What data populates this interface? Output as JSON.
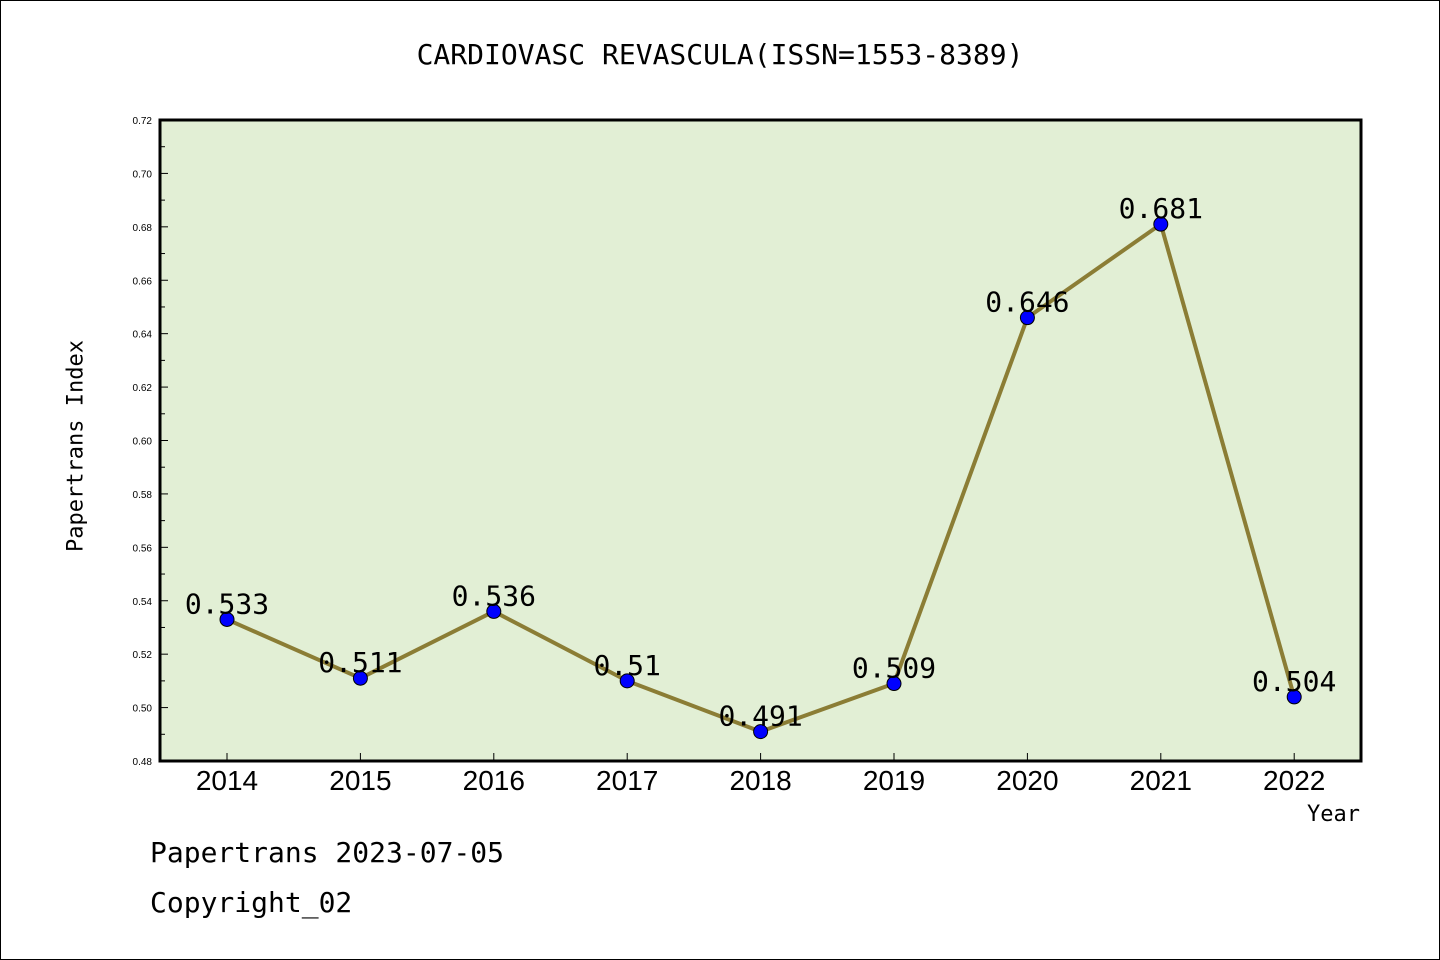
{
  "title": "CARDIOVASC REVASCULA(ISSN=1553-8389)",
  "footer": {
    "line1": "Papertrans 2023-07-05",
    "line2": "Copyright_02"
  },
  "colors": {
    "plot_bg": "#e2efd5",
    "line": "#8b7d35",
    "marker": "#0000ff",
    "axis": "#000000"
  },
  "chart_data": {
    "type": "line",
    "title": "CARDIOVASC REVASCULA(ISSN=1553-8389)",
    "xlabel": "Year",
    "ylabel": "Papertrans Index",
    "categories": [
      "2014",
      "2015",
      "2016",
      "2017",
      "2018",
      "2019",
      "2020",
      "2021",
      "2022"
    ],
    "series": [
      {
        "values": [
          0.533,
          0.511,
          0.536,
          0.51,
          0.491,
          0.509,
          0.646,
          0.681,
          0.504
        ],
        "labels": [
          "0.533",
          "0.511",
          "0.536",
          "0.51",
          "0.491",
          "0.509",
          "0.646",
          "0.681",
          "0.504"
        ]
      }
    ],
    "ylim": [
      0.48,
      0.72
    ],
    "yticks": [
      "0.48",
      "0.50",
      "0.52",
      "0.54",
      "0.56",
      "0.58",
      "0.60",
      "0.62",
      "0.64",
      "0.66",
      "0.68",
      "0.70",
      "0.72"
    ],
    "grid": false,
    "legend": "none"
  }
}
